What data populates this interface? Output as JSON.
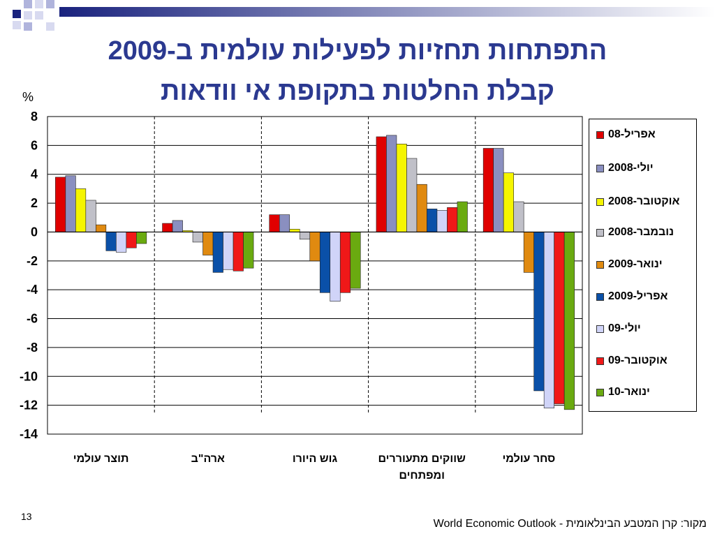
{
  "title_line1": "התפתחות תחזיות לפעילות עולמית ב-2009",
  "title_line2": "קבלת החלטות בתקופת אי וודאות",
  "page_number": "13",
  "source": "מקור: קרן המטבע הבינלאומית - World Economic Outlook",
  "colors": {
    "title": "#2b3990",
    "decoration": "#1a237e"
  },
  "chart_data": {
    "type": "bar",
    "ylabel": "%",
    "ylim": [
      -14,
      8
    ],
    "yticks": [
      8,
      6,
      4,
      2,
      0,
      -2,
      -4,
      -6,
      -8,
      -10,
      -12,
      -14
    ],
    "grid": true,
    "legend_position": "right",
    "categories": [
      "תוצר עולמי",
      "ארה\"ב",
      "גוש היורו",
      "שווקים מתעוררים ומפתחים",
      "סחר עולמי"
    ],
    "series": [
      {
        "name": "אפריל-08",
        "color": "#e00000",
        "values": [
          3.8,
          0.6,
          1.2,
          6.6,
          5.8
        ]
      },
      {
        "name": "יולי-2008",
        "color": "#8a8fc0",
        "values": [
          3.9,
          0.8,
          1.2,
          6.7,
          5.8
        ]
      },
      {
        "name": "אוקטובר-2008",
        "color": "#f5f500",
        "values": [
          3.0,
          0.1,
          0.2,
          6.1,
          4.1
        ]
      },
      {
        "name": "נובמבר-2008",
        "color": "#c0c0c8",
        "values": [
          2.2,
          -0.7,
          -0.5,
          5.1,
          2.1
        ]
      },
      {
        "name": "ינואר-2009",
        "color": "#e08a10",
        "values": [
          0.5,
          -1.6,
          -2.0,
          3.3,
          -2.8
        ]
      },
      {
        "name": "אפריל-2009",
        "color": "#0a50a8",
        "values": [
          -1.3,
          -2.8,
          -4.2,
          1.6,
          -11.0
        ]
      },
      {
        "name": "יולי-09",
        "color": "#d0d4f8",
        "values": [
          -1.4,
          -2.6,
          -4.8,
          1.5,
          -12.2
        ]
      },
      {
        "name": "אוקטובר-09",
        "color": "#f01818",
        "values": [
          -1.1,
          -2.7,
          -4.2,
          1.7,
          -11.9
        ]
      },
      {
        "name": "ינואר-10",
        "color": "#6aaa10",
        "values": [
          -0.8,
          -2.5,
          -3.9,
          2.1,
          -12.3
        ]
      }
    ]
  }
}
